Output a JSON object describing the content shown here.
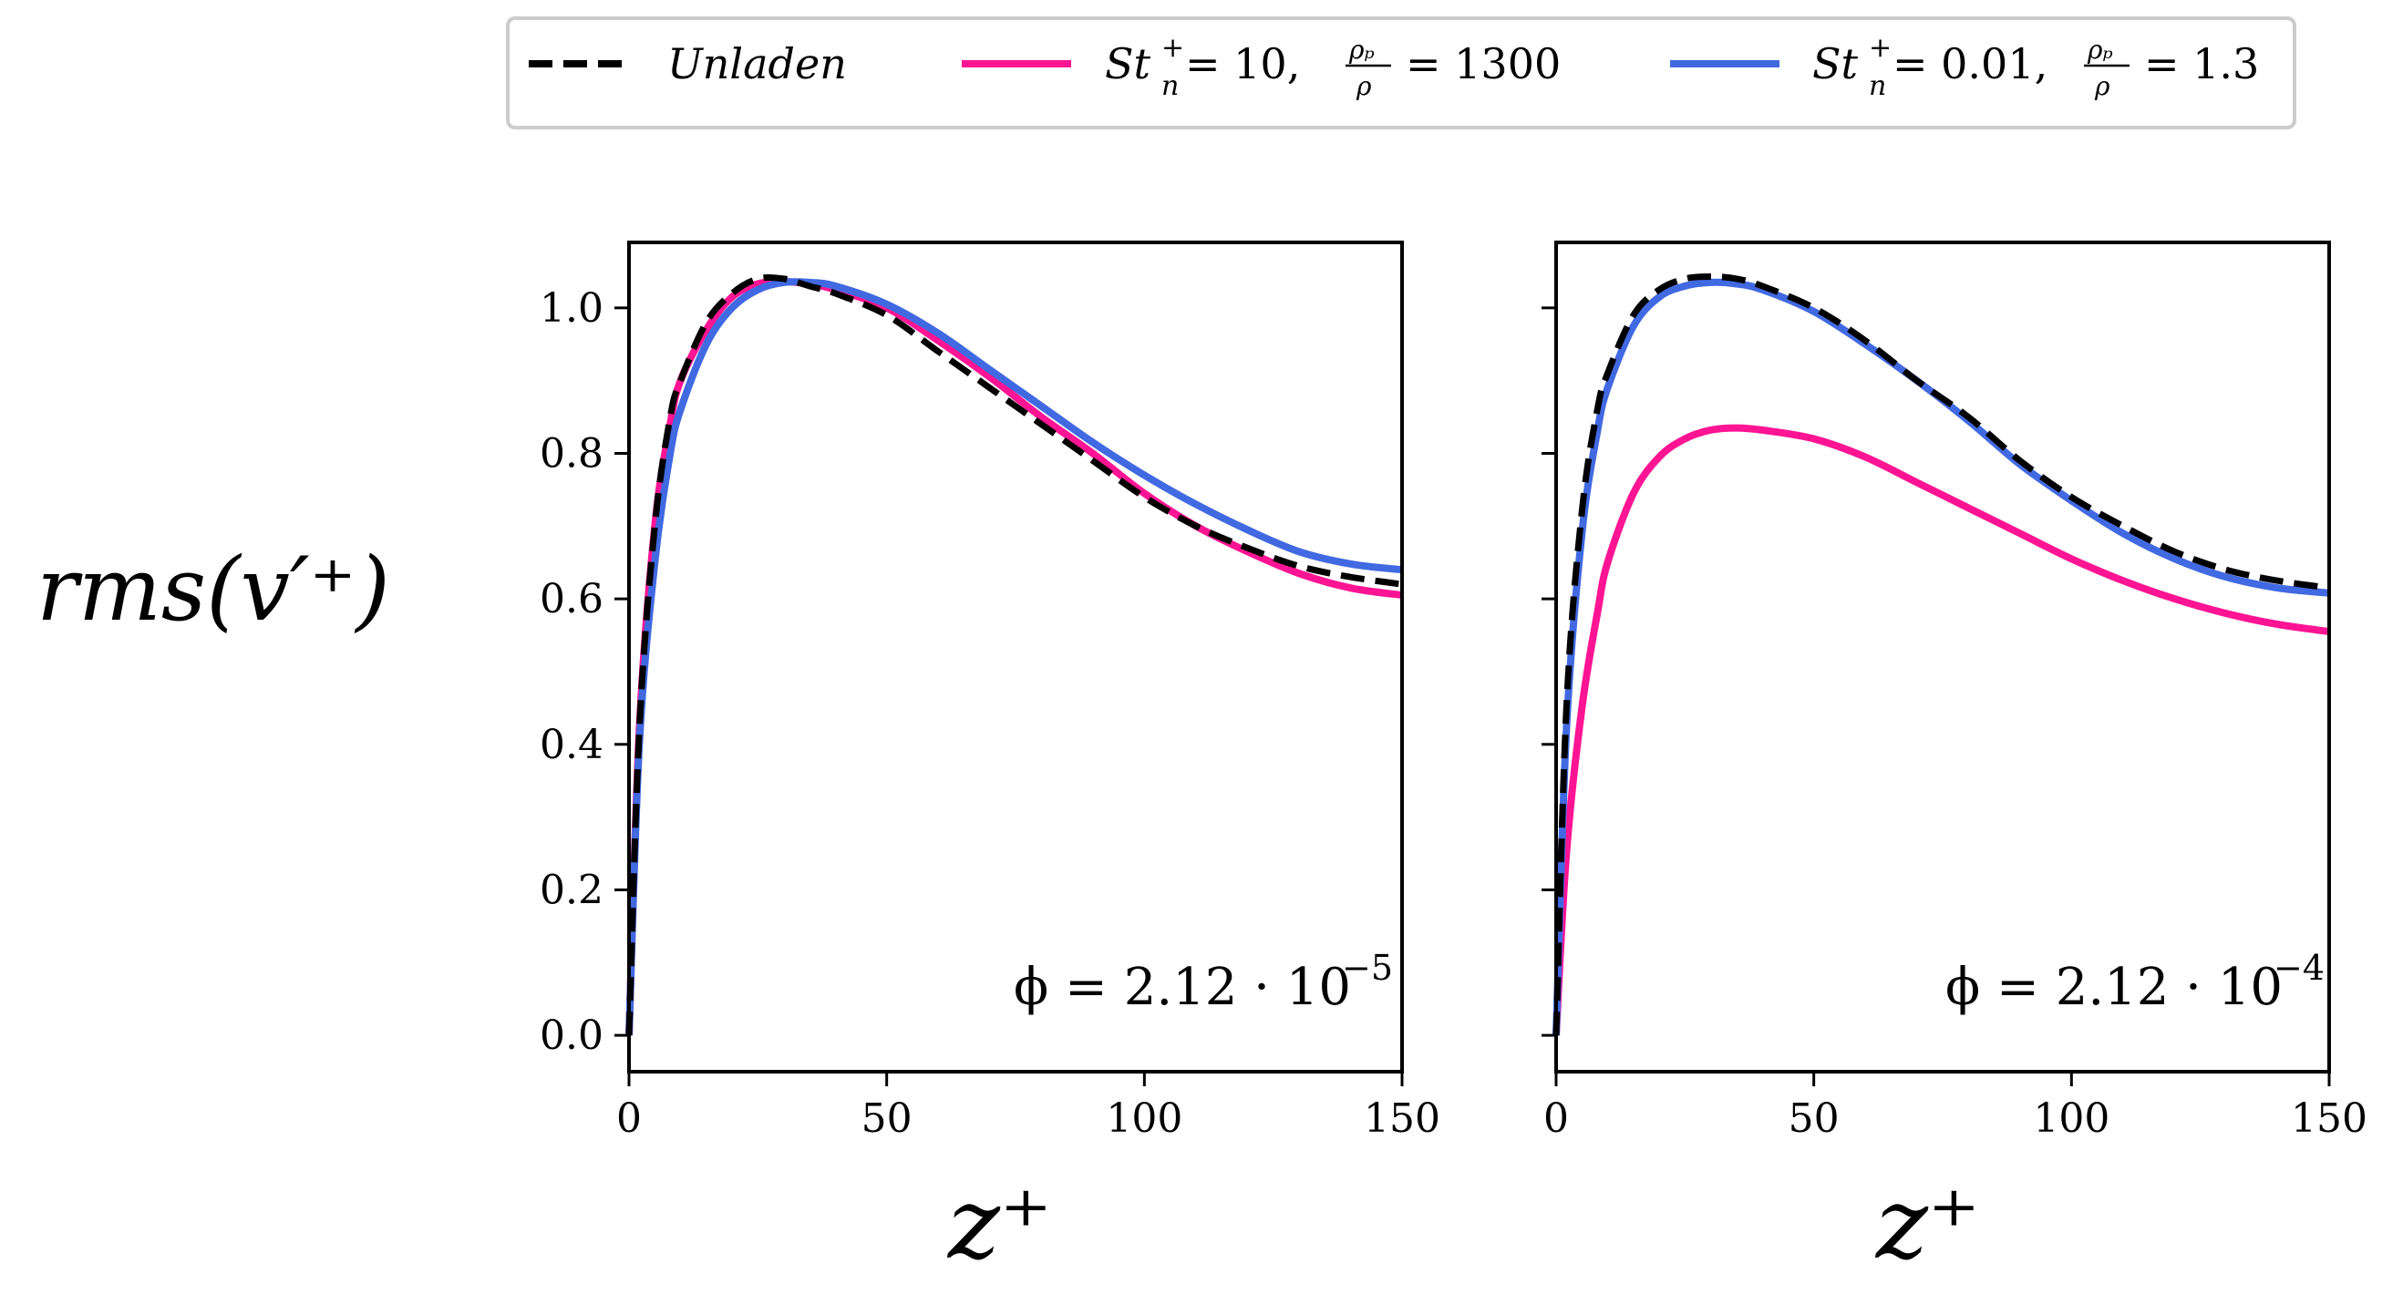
{
  "chart_data": {
    "type": "line",
    "legend": {
      "placement": "top-center",
      "entries": [
        {
          "key": "unladen",
          "label": "Unladen",
          "style": "dashed",
          "color": "#000000"
        },
        {
          "key": "heavy",
          "label": "St⁺ₙ = 10, ρₚ/ρ = 1300",
          "label_parts": {
            "st": "St",
            "sup": "+",
            "sub": "n",
            "eq1": " = 10,",
            "frac_num": "ρₚ",
            "frac_den": "ρ",
            "eq2": "= 1300"
          },
          "style": "solid",
          "color": "#ff1493"
        },
        {
          "key": "light",
          "label": "St⁺ₙ = 0.01, ρₚ/ρ = 1.3",
          "label_parts": {
            "st": "St",
            "sup": "+",
            "sub": "n",
            "eq1": " = 0.01,",
            "frac_num": "ρₚ",
            "frac_den": "ρ",
            "eq2": "= 1.3"
          },
          "style": "solid",
          "color": "#4169e1"
        }
      ]
    },
    "ylabel": "rms(v′⁺)",
    "ylim": [
      -0.05,
      1.09
    ],
    "xlim": [
      0,
      150
    ],
    "yticks": [
      0.0,
      0.2,
      0.4,
      0.6,
      0.8,
      1.0
    ],
    "yticklabels": [
      "0.0",
      "0.2",
      "0.4",
      "0.6",
      "0.8",
      "1.0"
    ],
    "xticks": [
      0,
      50,
      100,
      150
    ],
    "xticklabels": [
      "0",
      "50",
      "100",
      "150"
    ],
    "panels": [
      {
        "id": "left",
        "xlabel": "z⁺",
        "annotation": {
          "text": "ϕ = 2.12 · 10⁻⁵",
          "base": "ϕ = 2.12 · 10",
          "exp": "−5"
        },
        "series": [
          {
            "key": "unladen",
            "x": [
              0,
              2,
              5,
              8,
              10,
              15,
              20,
              25,
              30,
              35,
              40,
              50,
              60,
              70,
              80,
              90,
              100,
              110,
              120,
              130,
              140,
              150
            ],
            "y": [
              0.0,
              0.42,
              0.7,
              0.85,
              0.9,
              0.98,
              1.02,
              1.04,
              1.04,
              1.03,
              1.02,
              0.99,
              0.94,
              0.89,
              0.84,
              0.79,
              0.74,
              0.7,
              0.67,
              0.645,
              0.63,
              0.62
            ]
          },
          {
            "key": "heavy",
            "x": [
              0,
              2,
              5,
              8,
              10,
              15,
              20,
              25,
              30,
              35,
              40,
              50,
              60,
              70,
              80,
              90,
              100,
              110,
              120,
              130,
              140,
              150
            ],
            "y": [
              0.0,
              0.42,
              0.7,
              0.84,
              0.9,
              0.97,
              1.015,
              1.033,
              1.036,
              1.033,
              1.025,
              1.0,
              0.955,
              0.905,
              0.85,
              0.8,
              0.745,
              0.7,
              0.665,
              0.635,
              0.615,
              0.605
            ]
          },
          {
            "key": "light",
            "x": [
              0,
              2,
              5,
              8,
              10,
              15,
              20,
              25,
              30,
              35,
              40,
              50,
              60,
              70,
              80,
              90,
              100,
              110,
              120,
              130,
              140,
              150
            ],
            "y": [
              0.0,
              0.4,
              0.65,
              0.8,
              0.86,
              0.95,
              1.0,
              1.025,
              1.035,
              1.035,
              1.03,
              1.005,
              0.965,
              0.915,
              0.865,
              0.815,
              0.77,
              0.73,
              0.695,
              0.665,
              0.648,
              0.64
            ]
          }
        ]
      },
      {
        "id": "right",
        "xlabel": "z⁺",
        "annotation": {
          "text": "ϕ = 2.12 · 10⁻⁴",
          "base": "ϕ = 2.12 · 10",
          "exp": "−4"
        },
        "series": [
          {
            "key": "unladen",
            "x": [
              0,
              2,
              5,
              8,
              10,
              15,
              20,
              25,
              30,
              35,
              40,
              50,
              60,
              70,
              80,
              90,
              100,
              110,
              120,
              130,
              140,
              150
            ],
            "y": [
              0.0,
              0.45,
              0.72,
              0.86,
              0.91,
              0.99,
              1.025,
              1.04,
              1.043,
              1.04,
              1.03,
              1.0,
              0.955,
              0.9,
              0.85,
              0.79,
              0.74,
              0.7,
              0.665,
              0.64,
              0.625,
              0.615
            ]
          },
          {
            "key": "heavy",
            "x": [
              0,
              2,
              5,
              8,
              10,
              15,
              20,
              25,
              30,
              35,
              40,
              50,
              60,
              70,
              80,
              90,
              100,
              110,
              120,
              130,
              140,
              150
            ],
            "y": [
              0.0,
              0.25,
              0.45,
              0.58,
              0.65,
              0.745,
              0.795,
              0.82,
              0.832,
              0.835,
              0.832,
              0.82,
              0.795,
              0.76,
              0.725,
              0.69,
              0.655,
              0.625,
              0.6,
              0.58,
              0.565,
              0.555
            ]
          },
          {
            "key": "light",
            "x": [
              0,
              2,
              5,
              8,
              10,
              15,
              20,
              25,
              30,
              35,
              40,
              50,
              60,
              70,
              80,
              90,
              100,
              110,
              120,
              130,
              140,
              150
            ],
            "y": [
              0.0,
              0.42,
              0.69,
              0.83,
              0.89,
              0.975,
              1.015,
              1.03,
              1.035,
              1.033,
              1.025,
              0.995,
              0.95,
              0.9,
              0.845,
              0.785,
              0.735,
              0.69,
              0.655,
              0.63,
              0.615,
              0.608
            ]
          }
        ]
      }
    ]
  }
}
